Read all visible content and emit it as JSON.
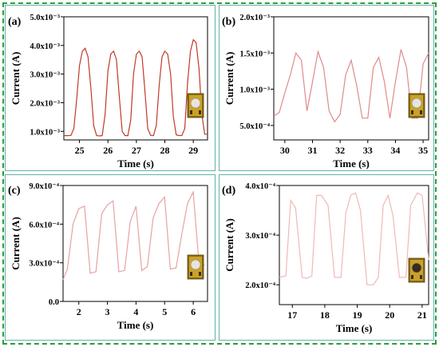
{
  "colors": {
    "frame": "#2e9b3a",
    "panel_border": "#5fb3a8"
  },
  "chart_data": [
    {
      "type": "line",
      "panel_label": "(a)",
      "xlabel": "Time (s)",
      "ylabel": "Current (A)",
      "xlim": [
        24.45,
        29.5
      ],
      "ylim": [
        0.0007,
        0.005
      ],
      "xticks": [
        25,
        26,
        27,
        28,
        29
      ],
      "xtick_labels": [
        "25",
        "26",
        "27",
        "28",
        "29"
      ],
      "yticks": [
        0.001,
        0.002,
        0.003,
        0.004,
        0.005
      ],
      "ytick_labels": [
        "1.0x10⁻³",
        "2.0x10⁻³",
        "3.0x10⁻³",
        "4.0x10⁻³",
        "5.0x10⁻³"
      ],
      "line_color": "#c0392b",
      "series": [
        {
          "x": [
            24.45,
            24.6,
            24.7,
            24.8,
            24.9,
            25.0,
            25.1,
            25.2,
            25.3,
            25.4,
            25.5,
            25.6,
            25.7,
            25.8,
            25.9,
            26.0,
            26.1,
            26.2,
            26.3,
            26.4,
            26.5,
            26.6,
            26.7,
            26.8,
            26.9,
            27.0,
            27.1,
            27.2,
            27.3,
            27.4,
            27.5,
            27.6,
            27.7,
            27.8,
            27.9,
            28.0,
            28.1,
            28.2,
            28.3,
            28.4,
            28.5,
            28.6,
            28.7,
            28.8,
            28.9,
            29.0,
            29.1,
            29.2,
            29.3,
            29.4,
            29.5
          ],
          "y": [
            0.00085,
            0.00085,
            0.00086,
            0.0011,
            0.0021,
            0.0033,
            0.0038,
            0.0039,
            0.0036,
            0.0025,
            0.0012,
            0.00085,
            0.00084,
            0.00085,
            0.0016,
            0.0031,
            0.0037,
            0.0038,
            0.0035,
            0.0022,
            0.001,
            0.00085,
            0.00085,
            0.0014,
            0.003,
            0.0037,
            0.0038,
            0.0036,
            0.0024,
            0.0011,
            0.00086,
            0.00085,
            0.0012,
            0.0026,
            0.0036,
            0.0038,
            0.0037,
            0.003,
            0.0015,
            0.00088,
            0.00085,
            0.00086,
            0.0011,
            0.0027,
            0.0038,
            0.0042,
            0.0041,
            0.0032,
            0.0016,
            0.0009,
            0.0009
          ]
        }
      ]
    },
    {
      "type": "line",
      "panel_label": "(b)",
      "xlabel": "Time (s)",
      "ylabel": "Current (A)",
      "xlim": [
        29.6,
        35.2
      ],
      "ylim": [
        0.0003,
        0.002
      ],
      "xticks": [
        30,
        31,
        32,
        33,
        34,
        35
      ],
      "xtick_labels": [
        "30",
        "31",
        "32",
        "33",
        "34",
        "35"
      ],
      "yticks": [
        0.0005,
        0.001,
        0.0015,
        0.002
      ],
      "ytick_labels": [
        "5.0x10⁻⁴",
        "1.0x10⁻³",
        "1.5x10⁻³",
        "2.0x10⁻³"
      ],
      "line_color": "#e08a8a",
      "series": [
        {
          "x": [
            29.6,
            29.8,
            30.0,
            30.2,
            30.4,
            30.6,
            30.8,
            31.0,
            31.2,
            31.4,
            31.6,
            31.8,
            32.0,
            32.2,
            32.4,
            32.6,
            32.8,
            33.0,
            33.2,
            33.4,
            33.6,
            33.8,
            34.0,
            34.2,
            34.4,
            34.6,
            34.8,
            35.0,
            35.2
          ],
          "y": [
            0.00063,
            0.00068,
            0.00095,
            0.0012,
            0.0015,
            0.0014,
            0.0007,
            0.0011,
            0.00152,
            0.0013,
            0.0007,
            0.00055,
            0.00065,
            0.0012,
            0.0014,
            0.00105,
            0.0006,
            0.0006,
            0.0013,
            0.00144,
            0.0011,
            0.0006,
            0.0011,
            0.00155,
            0.0013,
            0.0006,
            0.0006,
            0.00135,
            0.0015
          ]
        }
      ]
    },
    {
      "type": "line",
      "panel_label": "(c)",
      "xlabel": "Time (s)",
      "ylabel": "Current (A)",
      "xlim": [
        1.45,
        6.5
      ],
      "ylim": [
        0.0,
        0.0009
      ],
      "xticks": [
        2,
        3,
        4,
        5,
        6
      ],
      "xtick_labels": [
        "2",
        "3",
        "4",
        "5",
        "6"
      ],
      "yticks": [
        0.0,
        0.0003,
        0.0006,
        0.0009
      ],
      "ytick_labels": [
        "0.0",
        "3.0x10⁻⁴",
        "6.0x10⁻⁴",
        "9.0x10⁻⁴"
      ],
      "line_color": "#e7a2a2",
      "series": [
        {
          "x": [
            1.45,
            1.6,
            1.8,
            2.0,
            2.2,
            2.4,
            2.6,
            2.8,
            3.0,
            3.2,
            3.4,
            3.6,
            3.8,
            4.0,
            4.2,
            4.4,
            4.6,
            4.8,
            5.0,
            5.2,
            5.4,
            5.6,
            5.8,
            6.0,
            6.2,
            6.4
          ],
          "y": [
            0.00017,
            0.00025,
            0.0006,
            0.00072,
            0.00074,
            0.00022,
            0.00023,
            0.00068,
            0.00075,
            0.00078,
            0.00023,
            0.00024,
            0.00062,
            0.00074,
            0.00024,
            0.00027,
            0.00065,
            0.00076,
            0.00081,
            0.00025,
            0.00026,
            0.00052,
            0.00076,
            0.00085,
            0.0003,
            0.00028
          ]
        }
      ]
    },
    {
      "type": "line",
      "panel_label": "(d)",
      "xlabel": "Time (s)",
      "ylabel": "Current (A)",
      "xlim": [
        16.6,
        21.2
      ],
      "ylim": [
        0.00016,
        0.0004
      ],
      "xticks": [
        17,
        18,
        19,
        20,
        21
      ],
      "xtick_labels": [
        "17",
        "18",
        "19",
        "20",
        "21"
      ],
      "yticks": [
        0.0002,
        0.0003,
        0.0004
      ],
      "ytick_labels": [
        "2.0x10⁻⁴",
        "3.0x10⁻⁴",
        "4.0x10⁻⁴"
      ],
      "line_color": "#f0b8b8",
      "series": [
        {
          "x": [
            16.6,
            16.8,
            16.95,
            17.1,
            17.3,
            17.45,
            17.6,
            17.75,
            17.9,
            18.1,
            18.3,
            18.5,
            18.65,
            18.8,
            18.95,
            19.1,
            19.3,
            19.5,
            19.65,
            19.8,
            19.95,
            20.1,
            20.3,
            20.5,
            20.65,
            20.85,
            21.0,
            21.2
          ],
          "y": [
            0.000215,
            0.000218,
            0.00037,
            0.000355,
            0.000215,
            0.000213,
            0.000218,
            0.00038,
            0.00038,
            0.00036,
            0.000215,
            0.000215,
            0.000345,
            0.00038,
            0.000385,
            0.00035,
            0.0002,
            0.0002,
            0.000215,
            0.00036,
            0.00038,
            0.00034,
            0.000215,
            0.000215,
            0.00036,
            0.000385,
            0.00038,
            0.00025
          ]
        }
      ]
    }
  ]
}
